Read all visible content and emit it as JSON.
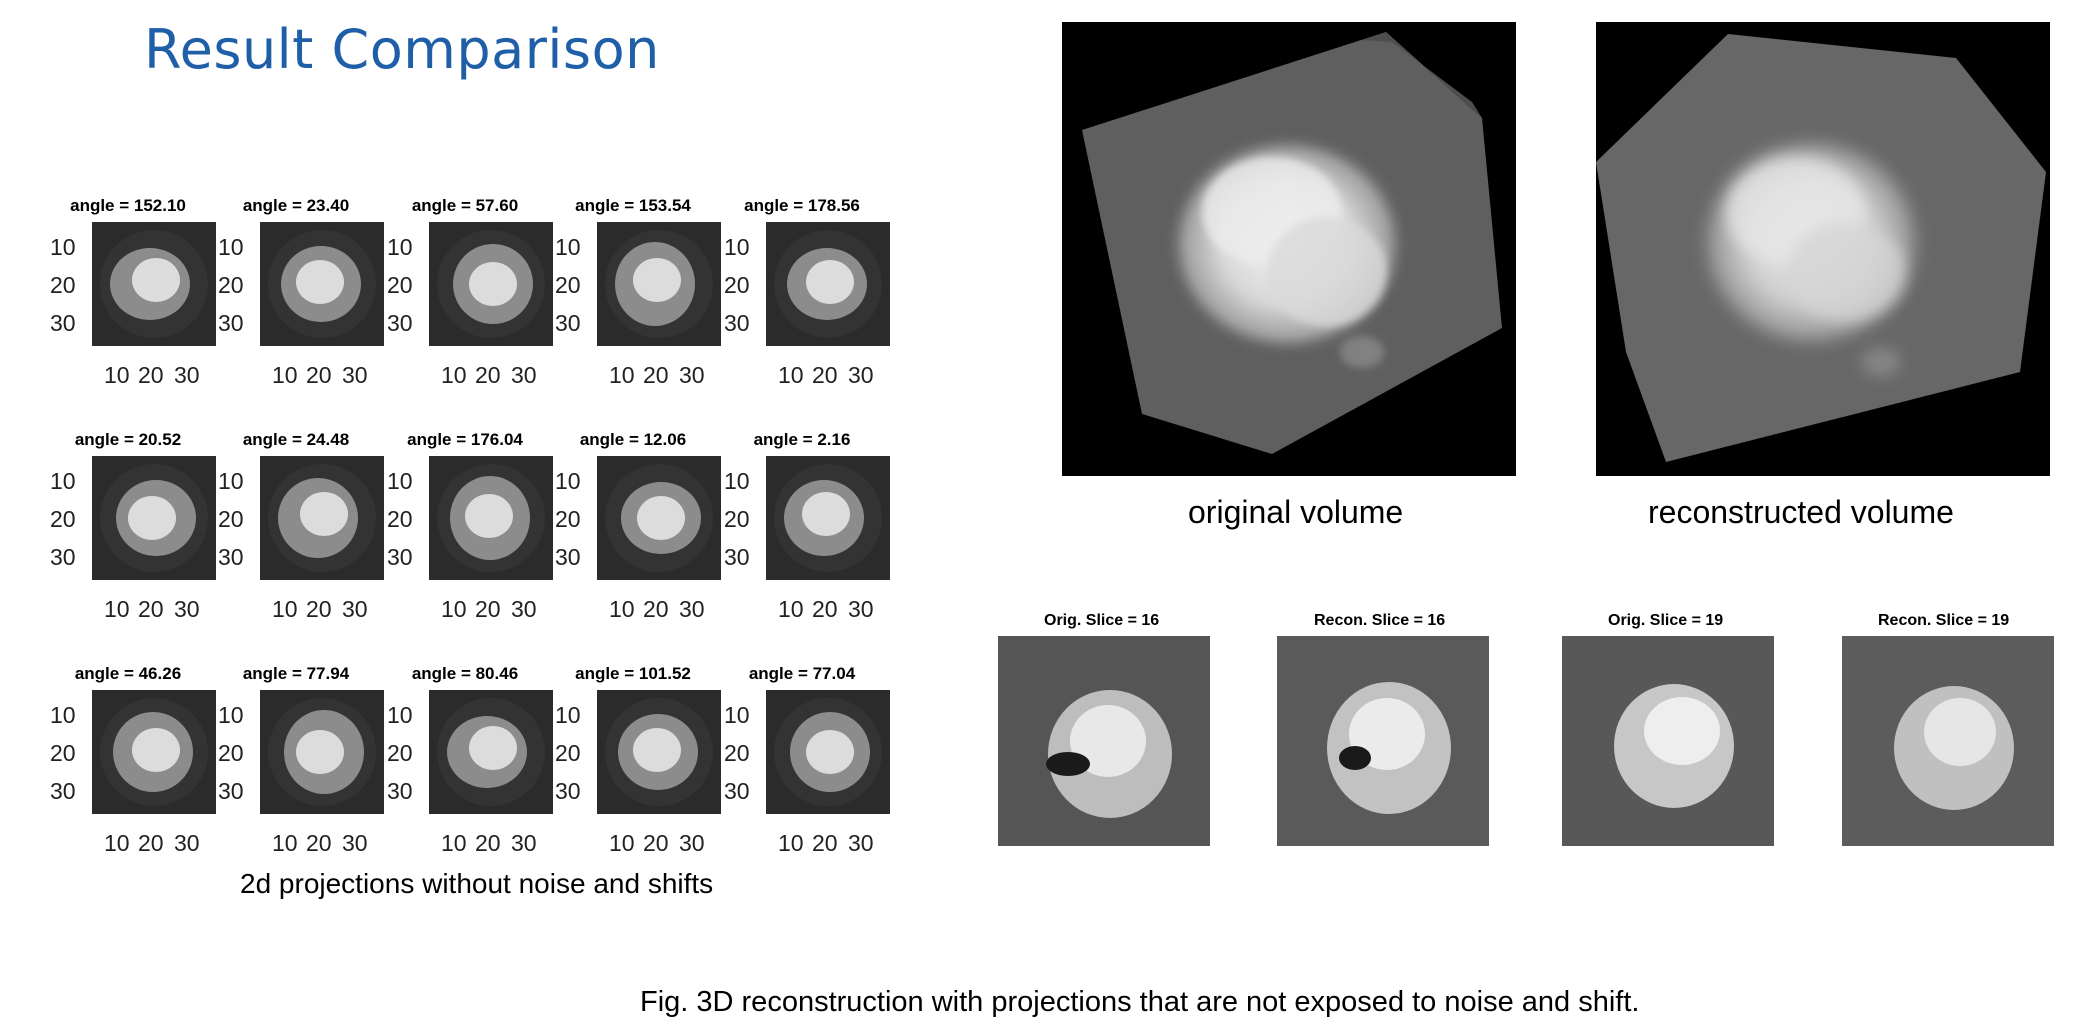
{
  "title": "Result Comparison",
  "projections": {
    "caption": "2d projections without noise and shifts",
    "tick_labels": [
      "10",
      "20",
      "30"
    ],
    "angles": [
      "angle = 152.10",
      "angle = 23.40",
      "angle = 57.60",
      "angle = 153.54",
      "angle = 178.56",
      "angle = 20.52",
      "angle = 24.48",
      "angle = 176.04",
      "angle = 12.06",
      "angle = 2.16",
      "angle = 46.26",
      "angle = 77.94",
      "angle = 80.46",
      "angle = 101.52",
      "angle = 77.04"
    ]
  },
  "volumes": {
    "original_label": "original volume",
    "reconstructed_label": "reconstructed volume"
  },
  "slices": [
    {
      "label": "Orig. Slice = 16"
    },
    {
      "label": "Recon. Slice = 16"
    },
    {
      "label": "Orig. Slice = 19"
    },
    {
      "label": "Recon. Slice = 19"
    }
  ],
  "figure_caption": "Fig. 3D reconstruction with projections that are not exposed to noise and shift."
}
